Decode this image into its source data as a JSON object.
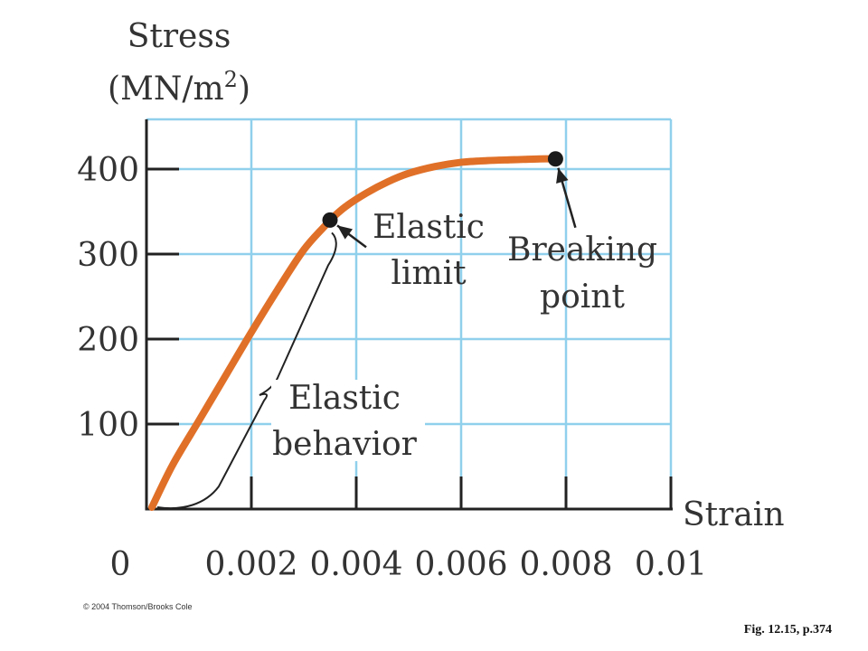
{
  "chart_data": {
    "type": "line",
    "ylabel_line1": "Stress",
    "ylabel_line2_prefix": "(MN/m",
    "ylabel_line2_sup": "2",
    "ylabel_line2_suffix": ")",
    "xlabel": "Strain",
    "xlim": [
      0,
      0.01
    ],
    "ylim": [
      0,
      400
    ],
    "x_ticks": [
      0,
      0.002,
      0.004,
      0.006,
      0.008,
      0.01
    ],
    "x_tick_labels": [
      "0",
      "0.002",
      "0.004",
      "0.006",
      "0.008",
      "0.01"
    ],
    "y_ticks": [
      100,
      200,
      300,
      400
    ],
    "y_tick_labels": [
      "100",
      "200",
      "300",
      "400"
    ],
    "grid": true,
    "series": [
      {
        "color": "#e07028",
        "x": [
          0,
          0.0005,
          0.001,
          0.0015,
          0.002,
          0.0025,
          0.003,
          0.0034,
          0.0035,
          0.0038,
          0.0042,
          0.0046,
          0.005,
          0.0055,
          0.006,
          0.0065,
          0.007,
          0.0075,
          0.0078
        ],
        "y": [
          0,
          52,
          104,
          156,
          208,
          258,
          305,
          333,
          340,
          356,
          372,
          385,
          395,
          403,
          408,
          410,
          411,
          412,
          412
        ]
      }
    ],
    "points": [
      {
        "name": "elastic_limit",
        "x": 0.0035,
        "y": 340
      },
      {
        "name": "breaking_point",
        "x": 0.0078,
        "y": 412
      }
    ],
    "annotations": {
      "elastic_limit": [
        "Elastic",
        "limit"
      ],
      "breaking_point": [
        "Breaking",
        "point"
      ],
      "elastic_behavior": [
        "Elastic",
        "behavior"
      ]
    },
    "colors": {
      "grid": "#90d0ec",
      "curve": "#e07028",
      "axis": "#222222",
      "point": "#1a1a1a"
    }
  },
  "copyright": "© 2004 Thomson/Brooks Cole",
  "figure_ref": "Fig. 12.15, p.374"
}
